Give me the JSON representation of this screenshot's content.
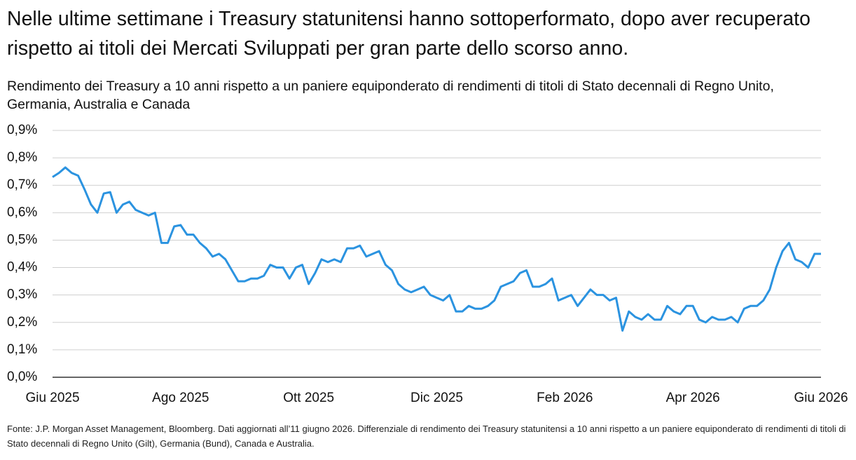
{
  "chart_data": {
    "type": "line",
    "title": "Nelle ultime settimane i Treasury statunitensi hanno sottoperformato, dopo aver recuperato rispetto ai titoli dei Mercati Sviluppati per gran parte dello scorso anno.",
    "subtitle": "Rendimento dei Treasury a 10 anni rispetto a un paniere equiponderato di rendimenti di titoli di Stato decennali di Regno Unito, Germania, Australia e Canada",
    "note": "Fonte: J.P. Morgan Asset Management, Bloomberg. Dati aggiornati all’11 giugno 2026. Differenziale di rendimento dei Treasury statunitensi a 10 anni rispetto a un paniere equiponderato di rendimenti di titoli di Stato decennali di Regno Unito (Gilt), Germania (Bund), Canada e Australia.",
    "categories": [
      "Giu 2025",
      null,
      null,
      null,
      null,
      null,
      null,
      null,
      null,
      null,
      null,
      null,
      null,
      null,
      null,
      null,
      null,
      null,
      null,
      null,
      "Ago 2025",
      null,
      null,
      null,
      null,
      null,
      null,
      null,
      null,
      null,
      null,
      null,
      null,
      null,
      null,
      null,
      null,
      null,
      null,
      null,
      "Ott 2025",
      null,
      null,
      null,
      null,
      null,
      null,
      null,
      null,
      null,
      null,
      null,
      null,
      null,
      null,
      null,
      null,
      null,
      null,
      null,
      "Dic 2025",
      null,
      null,
      null,
      null,
      null,
      null,
      null,
      null,
      null,
      null,
      null,
      null,
      null,
      null,
      null,
      null,
      null,
      null,
      null,
      "Feb 2026",
      null,
      null,
      null,
      null,
      null,
      null,
      null,
      null,
      null,
      null,
      null,
      null,
      null,
      null,
      null,
      null,
      null,
      null,
      null,
      "Apr 2026",
      null,
      null,
      null,
      null,
      null,
      null,
      null,
      null,
      null,
      null,
      null,
      null,
      null,
      null,
      null,
      null,
      null,
      null,
      null,
      "Giu 2026"
    ],
    "values": [
      0.73,
      0.745,
      0.765,
      0.745,
      0.735,
      0.685,
      0.63,
      0.6,
      0.67,
      0.675,
      0.6,
      0.63,
      0.64,
      0.61,
      0.6,
      0.59,
      0.6,
      0.49,
      0.49,
      0.55,
      0.555,
      0.52,
      0.52,
      0.49,
      0.47,
      0.44,
      0.45,
      0.43,
      0.39,
      0.35,
      0.35,
      0.36,
      0.36,
      0.37,
      0.41,
      0.4,
      0.4,
      0.36,
      0.4,
      0.41,
      0.34,
      0.38,
      0.43,
      0.42,
      0.43,
      0.42,
      0.47,
      0.47,
      0.48,
      0.44,
      0.45,
      0.46,
      0.41,
      0.39,
      0.34,
      0.32,
      0.31,
      0.32,
      0.33,
      0.3,
      0.29,
      0.28,
      0.3,
      0.24,
      0.24,
      0.26,
      0.25,
      0.25,
      0.26,
      0.28,
      0.33,
      0.34,
      0.35,
      0.38,
      0.39,
      0.33,
      0.33,
      0.34,
      0.36,
      0.28,
      0.29,
      0.3,
      0.26,
      0.29,
      0.32,
      0.3,
      0.3,
      0.28,
      0.29,
      0.17,
      0.24,
      0.22,
      0.21,
      0.23,
      0.21,
      0.21,
      0.26,
      0.24,
      0.23,
      0.26,
      0.26,
      0.21,
      0.2,
      0.22,
      0.21,
      0.21,
      0.22,
      0.2,
      0.25,
      0.26,
      0.26,
      0.28,
      0.32,
      0.4,
      0.46,
      0.49,
      0.43,
      0.42,
      0.4,
      0.45,
      0.45
    ],
    "color": "#2b93e0",
    "ylim": [
      0,
      0.9
    ],
    "yticks": [
      {
        "value": 0,
        "label": "0,0%"
      },
      {
        "value": 0.1,
        "label": "0,1%"
      },
      {
        "value": 0.2,
        "label": "0,2%"
      },
      {
        "value": 0.3,
        "label": "0,3%"
      },
      {
        "value": 0.4,
        "label": "0,4%"
      },
      {
        "value": 0.5,
        "label": "0,5%"
      },
      {
        "value": 0.6,
        "label": "0,6%"
      },
      {
        "value": 0.7,
        "label": "0,7%"
      },
      {
        "value": 0.8,
        "label": "0,8%"
      },
      {
        "value": 0.9,
        "label": "0,9%"
      }
    ],
    "grid": true
  }
}
